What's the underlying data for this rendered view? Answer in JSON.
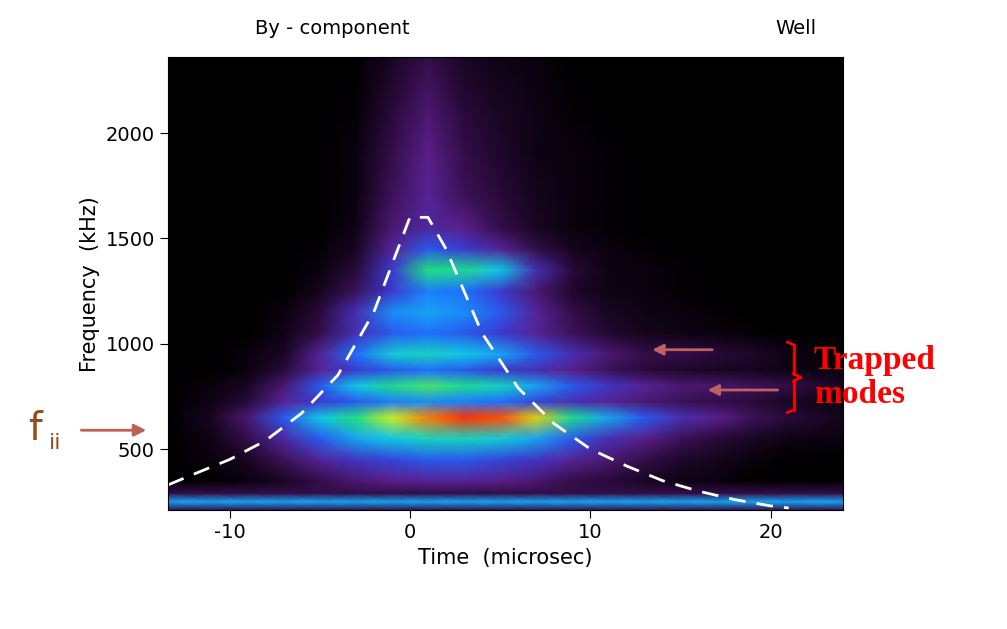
{
  "chart_data": {
    "type": "heatmap",
    "title": "By - component",
    "subtitle": "Well",
    "x_label": "Time  (microsec)",
    "y_label": "Frequency  (kHz)",
    "xlim": [
      -13.4,
      24
    ],
    "ylim": [
      210,
      2360
    ],
    "xticks": [
      -10,
      0,
      10,
      20
    ],
    "yticks": [
      500,
      1000,
      1500,
      2000
    ],
    "x": [
      -13.4,
      -11,
      -9,
      -7,
      -5,
      -3,
      -1,
      1,
      3,
      5,
      7,
      9,
      11,
      13,
      15,
      17,
      19,
      21,
      24
    ],
    "y": [
      210,
      250,
      290,
      350,
      450,
      550,
      650,
      725,
      800,
      875,
      950,
      1050,
      1150,
      1250,
      1350,
      1450,
      1550,
      1700,
      1900,
      2100,
      2360
    ],
    "cells": [
      [
        0.1,
        0.1,
        0.1,
        0.1,
        0.1,
        0.1,
        0.1,
        0.1,
        0.1,
        0.1,
        0.1,
        0.1,
        0.1,
        0.1,
        0.1,
        0.1,
        0.1,
        0.1,
        0.1
      ],
      [
        0.45,
        0.45,
        0.45,
        0.45,
        0.45,
        0.45,
        0.45,
        0.45,
        0.45,
        0.45,
        0.45,
        0.45,
        0.45,
        0.45,
        0.45,
        0.45,
        0.45,
        0.45,
        0.45
      ],
      [
        0.1,
        0.1,
        0.1,
        0.1,
        0.1,
        0.1,
        0.1,
        0.1,
        0.1,
        0.1,
        0.1,
        0.1,
        0.1,
        0.1,
        0.1,
        0.1,
        0.1,
        0.1,
        0.1
      ],
      [
        0,
        0,
        0.02,
        0.05,
        0.1,
        0.15,
        0.18,
        0.2,
        0.2,
        0.18,
        0.15,
        0.1,
        0.08,
        0.05,
        0.03,
        0.02,
        0,
        0,
        0
      ],
      [
        0,
        0.02,
        0.05,
        0.12,
        0.2,
        0.28,
        0.32,
        0.35,
        0.35,
        0.32,
        0.28,
        0.2,
        0.15,
        0.1,
        0.06,
        0.04,
        0.02,
        0,
        0
      ],
      [
        0,
        0.03,
        0.1,
        0.22,
        0.35,
        0.45,
        0.5,
        0.55,
        0.55,
        0.52,
        0.45,
        0.35,
        0.25,
        0.18,
        0.12,
        0.08,
        0.05,
        0.03,
        0.02
      ],
      [
        0,
        0.05,
        0.15,
        0.35,
        0.5,
        0.62,
        0.75,
        0.9,
        0.98,
        0.95,
        0.8,
        0.6,
        0.45,
        0.35,
        0.25,
        0.18,
        0.12,
        0.08,
        0.04
      ],
      [
        0,
        0.03,
        0.08,
        0.2,
        0.3,
        0.35,
        0.4,
        0.42,
        0.4,
        0.38,
        0.32,
        0.25,
        0.2,
        0.15,
        0.12,
        0.1,
        0.08,
        0.05,
        0.02
      ],
      [
        0,
        0.02,
        0.05,
        0.15,
        0.35,
        0.5,
        0.6,
        0.65,
        0.6,
        0.55,
        0.45,
        0.35,
        0.28,
        0.2,
        0.15,
        0.14,
        0.12,
        0.1,
        0.05
      ],
      [
        0,
        0,
        0.02,
        0.08,
        0.2,
        0.3,
        0.35,
        0.38,
        0.35,
        0.3,
        0.25,
        0.18,
        0.12,
        0.08,
        0.06,
        0.05,
        0.04,
        0.03,
        0.02
      ],
      [
        0,
        0,
        0.02,
        0.05,
        0.2,
        0.38,
        0.52,
        0.55,
        0.5,
        0.45,
        0.35,
        0.25,
        0.15,
        0.1,
        0.1,
        0.08,
        0.06,
        0.03,
        0.01
      ],
      [
        0,
        0,
        0,
        0.03,
        0.1,
        0.25,
        0.35,
        0.38,
        0.35,
        0.3,
        0.2,
        0.12,
        0.07,
        0.04,
        0.03,
        0.02,
        0.01,
        0,
        0
      ],
      [
        0,
        0,
        0,
        0.02,
        0.08,
        0.25,
        0.42,
        0.45,
        0.42,
        0.35,
        0.2,
        0.1,
        0.05,
        0.03,
        0.02,
        0.01,
        0,
        0,
        0
      ],
      [
        0,
        0,
        0,
        0,
        0.04,
        0.12,
        0.3,
        0.4,
        0.38,
        0.3,
        0.15,
        0.06,
        0.03,
        0.02,
        0.01,
        0,
        0,
        0,
        0
      ],
      [
        0,
        0,
        0,
        0,
        0.02,
        0.08,
        0.3,
        0.62,
        0.6,
        0.5,
        0.25,
        0.08,
        0.03,
        0.02,
        0.01,
        0,
        0,
        0,
        0
      ],
      [
        0,
        0,
        0,
        0,
        0.01,
        0.05,
        0.2,
        0.35,
        0.3,
        0.2,
        0.1,
        0.04,
        0.02,
        0.01,
        0,
        0,
        0,
        0,
        0
      ],
      [
        0,
        0,
        0,
        0,
        0,
        0.03,
        0.15,
        0.22,
        0.18,
        0.1,
        0.05,
        0.02,
        0.01,
        0,
        0,
        0,
        0,
        0,
        0
      ],
      [
        0,
        0,
        0,
        0,
        0,
        0.02,
        0.12,
        0.2,
        0.12,
        0.08,
        0.04,
        0.02,
        0.01,
        0,
        0,
        0,
        0,
        0,
        0
      ],
      [
        0,
        0,
        0,
        0,
        0,
        0.02,
        0.1,
        0.18,
        0.1,
        0.06,
        0.03,
        0.02,
        0.01,
        0,
        0,
        0,
        0,
        0,
        0
      ],
      [
        0,
        0,
        0,
        0,
        0,
        0.01,
        0.08,
        0.15,
        0.08,
        0.05,
        0.03,
        0.01,
        0,
        0,
        0,
        0,
        0,
        0,
        0
      ],
      [
        0,
        0,
        0,
        0,
        0,
        0,
        0.05,
        0.1,
        0.05,
        0.03,
        0.02,
        0,
        0,
        0,
        0,
        0,
        0,
        0,
        0
      ]
    ],
    "zlim": [
      0,
      1
    ],
    "series": [
      {
        "type": "line",
        "color": "#ffffff",
        "line_style": "dashed",
        "x": [
          -13.4,
          -12,
          -10,
          -8,
          -6,
          -4,
          -2,
          0,
          1,
          2,
          4,
          6,
          8,
          10,
          12,
          14,
          16,
          18,
          20,
          21
        ],
        "values": [
          330,
          380,
          450,
          540,
          670,
          850,
          1150,
          1600,
          1600,
          1450,
          1050,
          790,
          620,
          500,
          420,
          350,
          300,
          260,
          230,
          220
        ]
      }
    ],
    "annotations": [
      {
        "text": "f",
        "subscript": "ii",
        "color": "#9a4a1a"
      },
      {
        "text": "Trapped\nmodes",
        "color": "#ff0000"
      }
    ]
  }
}
